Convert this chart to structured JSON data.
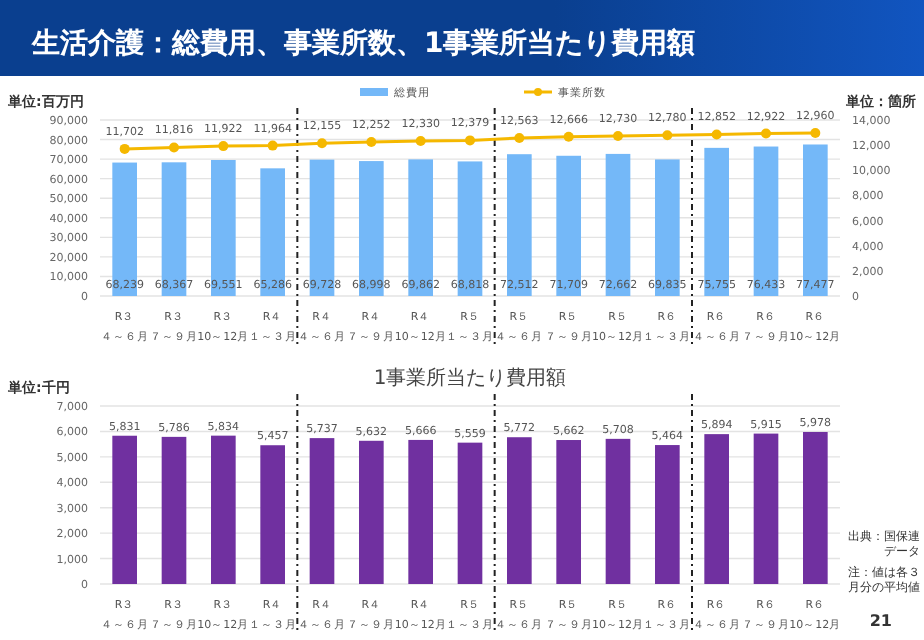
{
  "chart_data": [
    {
      "type": "bar",
      "title": "生活介護：総費用、事業所数、1事業所当たり費用額",
      "ylabel": "単位:百万円",
      "y2label": "単位：箇所",
      "categories": [
        "R３４～６月",
        "R３７～９月",
        "R３10～12月",
        "R４１～３月",
        "R４４～６月",
        "R４７～９月",
        "R４10～12月",
        "R５１～３月",
        "R５４～６月",
        "R５７～９月",
        "R５10～12月",
        "R６１～３月",
        "R６４～６月",
        "R６７～９月",
        "R６10～12月"
      ],
      "series": [
        {
          "name": "総費用",
          "color": "#74b8f8",
          "values": [
            68239,
            68367,
            69551,
            65286,
            69728,
            68998,
            69862,
            68818,
            72512,
            71709,
            72662,
            69835,
            75755,
            76433,
            77477
          ],
          "value_labels": [
            "68,239",
            "68,367",
            "69,551",
            "65,286",
            "69,728",
            "68,998",
            "69,862",
            "68,818",
            "72,512",
            "71,709",
            "72,662",
            "69,835",
            "75,755",
            "76,433",
            "77,477"
          ]
        },
        {
          "name": "事業所数",
          "type": "line",
          "axis": "y2",
          "color": "#f5b800",
          "marker": "circle",
          "values": [
            11702,
            11816,
            11922,
            11964,
            12155,
            12252,
            12330,
            12379,
            12563,
            12666,
            12730,
            12780,
            12852,
            12922,
            12960
          ],
          "value_labels": [
            "11,702",
            "11,816",
            "11,922",
            "11,964",
            "12,155",
            "12,252",
            "12,330",
            "12,379",
            "12,563",
            "12,666",
            "12,730",
            "12,780",
            "12,852",
            "12,922",
            "12,960"
          ]
        }
      ],
      "ylim": [
        0,
        90000
      ],
      "yticks": [
        0,
        {
          "value": 10000,
          "label": "10,000"
        },
        {
          "value": 20000,
          "label": "20,000"
        },
        {
          "value": 30000,
          "label": "30,000"
        },
        {
          "value": 40000,
          "label": "40,000"
        },
        {
          "value": 50000,
          "label": "50,000"
        },
        {
          "value": 60000,
          "label": "60,000"
        },
        {
          "value": 70000,
          "label": "70,000"
        },
        {
          "value": 80000,
          "label": "80,000"
        },
        {
          "value": 90000,
          "label": "90,000"
        }
      ],
      "y2lim": [
        0,
        14000
      ],
      "y2ticks": [
        0,
        {
          "value": 2000,
          "label": "2,000"
        },
        {
          "value": 4000,
          "label": "4,000"
        },
        {
          "value": 6000,
          "label": "6,000"
        },
        {
          "value": 8000,
          "label": "8,000"
        },
        {
          "value": 10000,
          "label": "10,000"
        },
        {
          "value": 12000,
          "label": "12,000"
        },
        {
          "value": 14000,
          "label": "14,000"
        }
      ],
      "grid": "y",
      "legend": "top"
    },
    {
      "type": "bar",
      "title": "1事業所当たり費用額",
      "ylabel": "単位:千円",
      "categories": [
        "R３４～６月",
        "R３７～９月",
        "R３10～12月",
        "R４１～３月",
        "R４４～６月",
        "R４７～９月",
        "R４10～12月",
        "R５１～３月",
        "R５４～６月",
        "R５７～９月",
        "R５10～12月",
        "R６１～３月",
        "R６４～６月",
        "R６７～９月",
        "R６10～12月"
      ],
      "series": [
        {
          "color": "#7030a0",
          "values": [
            5831,
            5786,
            5834,
            5457,
            5737,
            5632,
            5666,
            5559,
            5772,
            5662,
            5708,
            5464,
            5894,
            5915,
            5978
          ],
          "value_labels": [
            "5,831",
            "5,786",
            "5,834",
            "5,457",
            "5,737",
            "5,632",
            "5,666",
            "5,559",
            "5,772",
            "5,662",
            "5,708",
            "5,464",
            "5,894",
            "5,915",
            "5,978"
          ]
        }
      ],
      "ylim": [
        0,
        7000
      ],
      "yticks": [
        0,
        {
          "value": 1000,
          "label": "1,000"
        },
        {
          "value": 2000,
          "label": "2,000"
        },
        {
          "value": 3000,
          "label": "3,000"
        },
        {
          "value": 4000,
          "label": "4,000"
        },
        {
          "value": 5000,
          "label": "5,000"
        },
        {
          "value": 6000,
          "label": "6,000"
        },
        {
          "value": 7000,
          "label": "7,000"
        }
      ],
      "grid": "y",
      "annotations": [
        "出典：国保連データ",
        "注：値は各３月分の平均値",
        "21"
      ]
    }
  ]
}
